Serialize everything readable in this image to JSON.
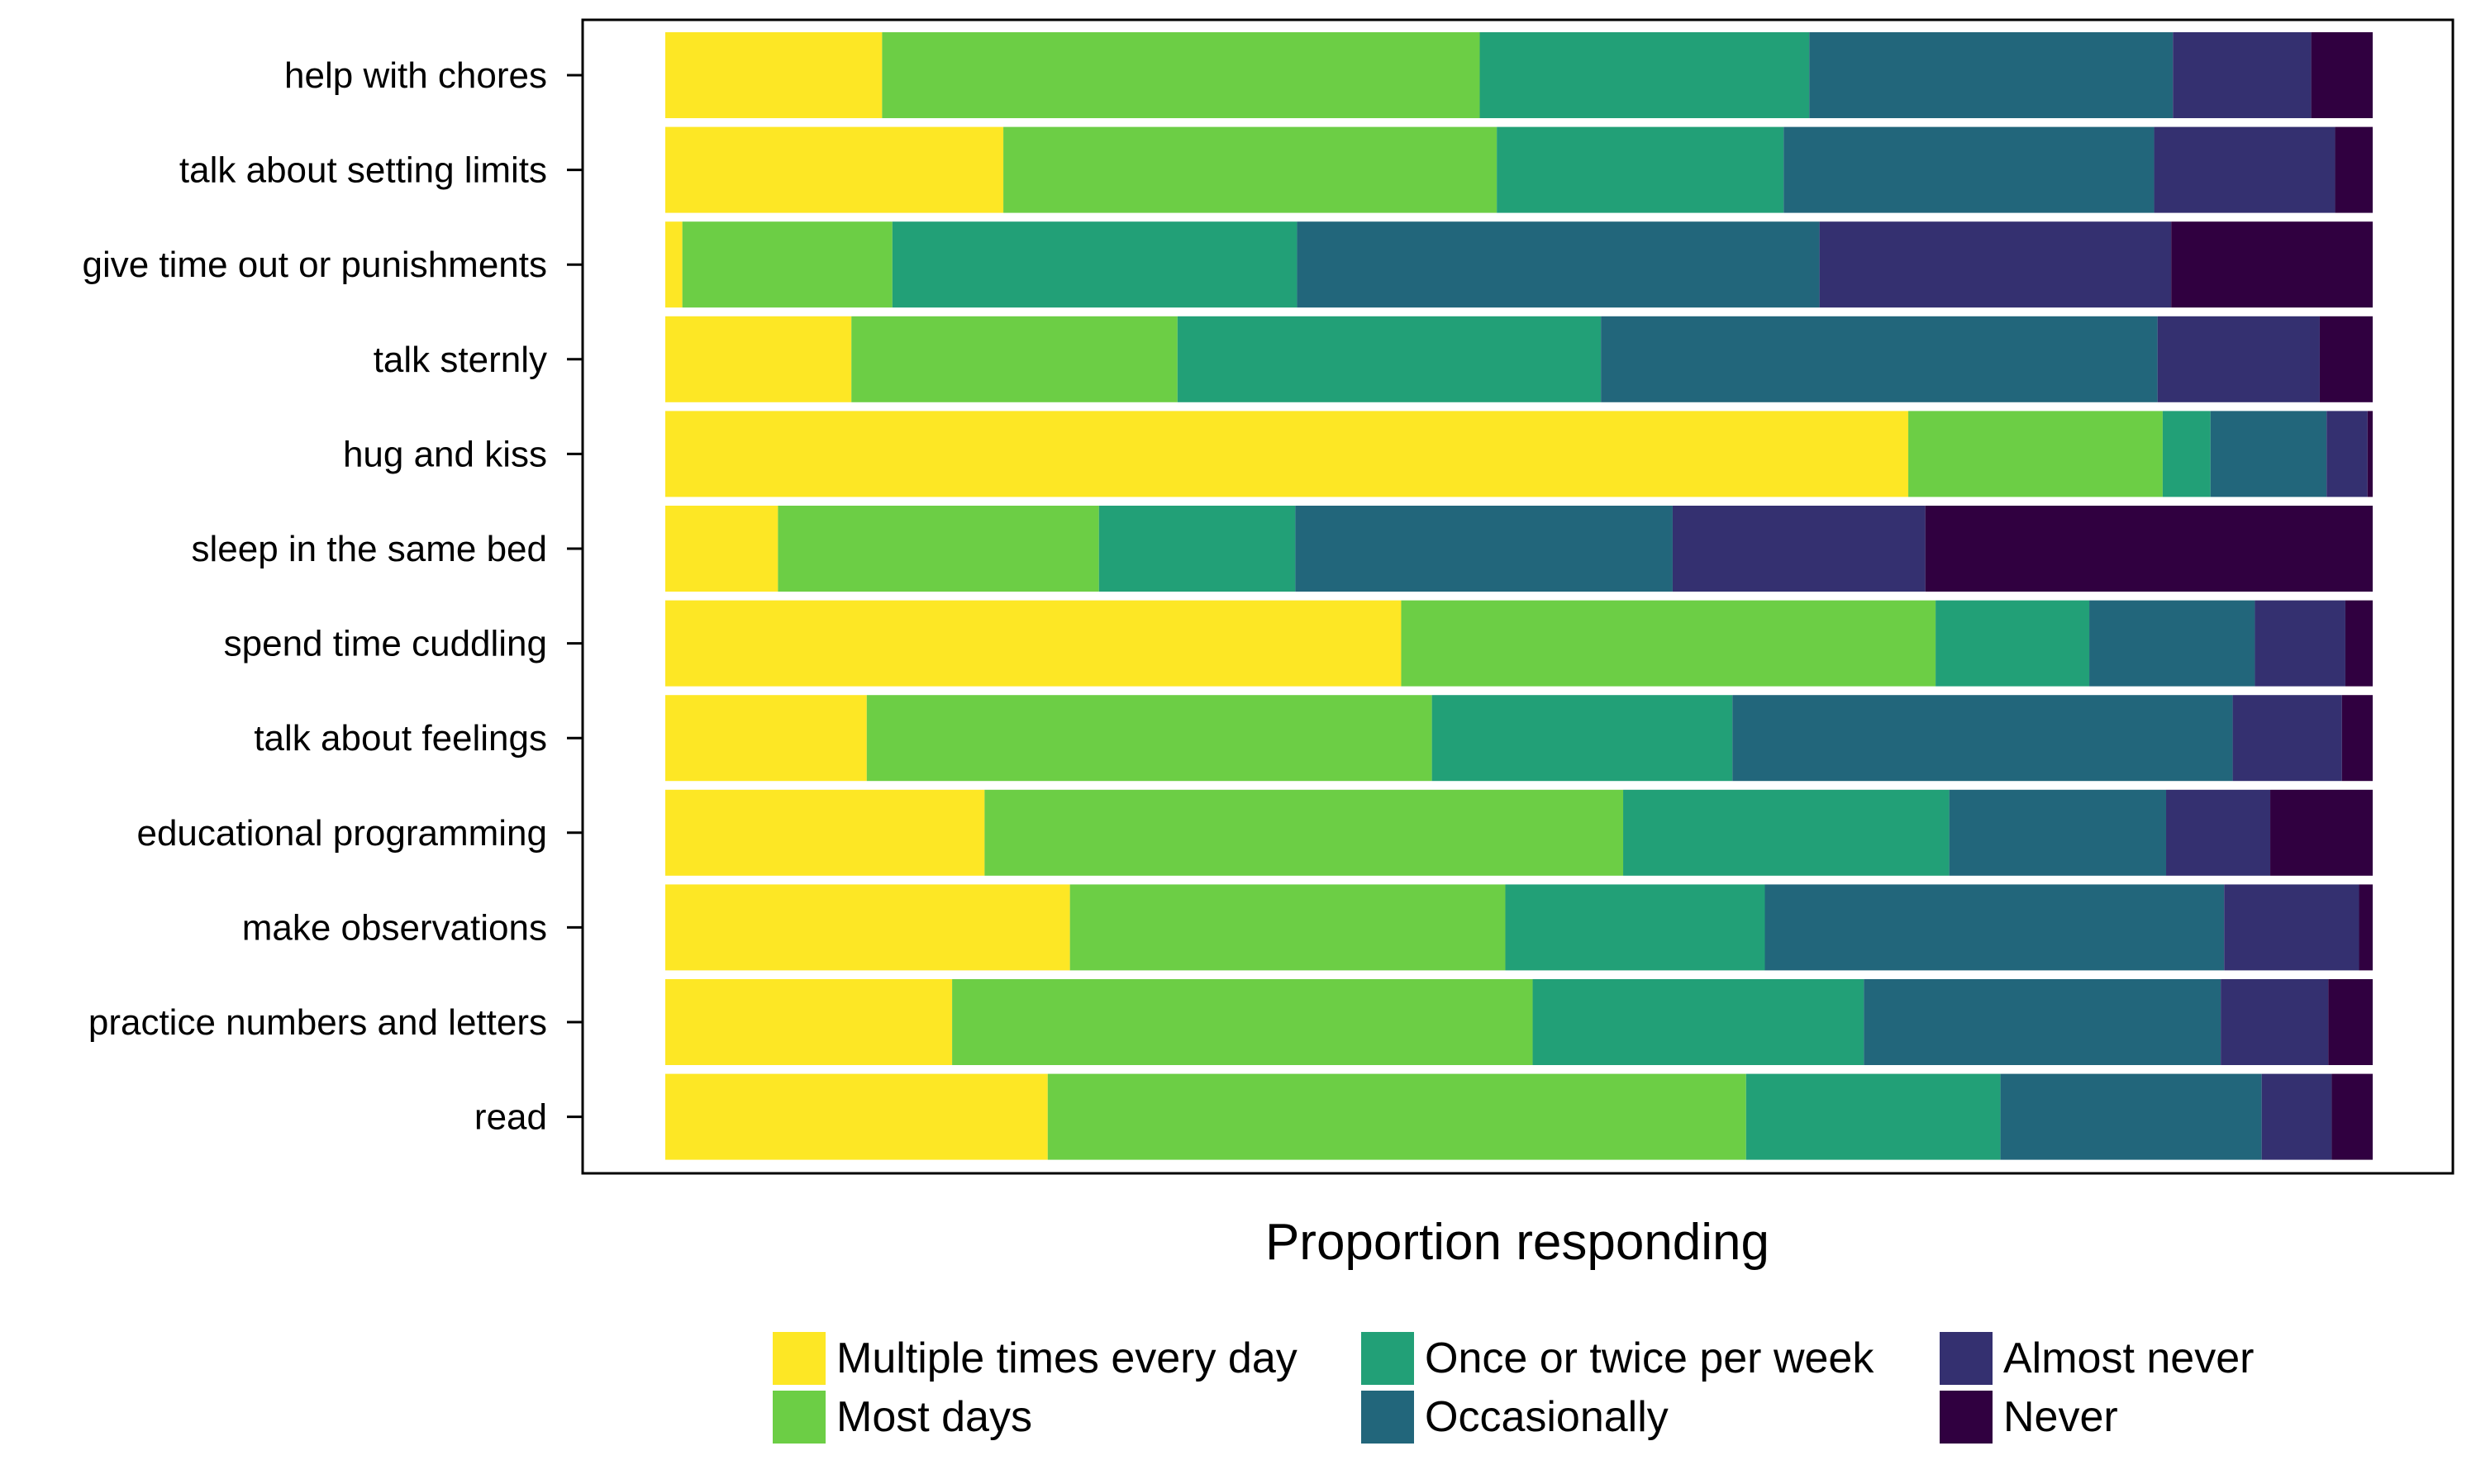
{
  "chart_data": {
    "type": "bar",
    "orientation": "horizontal",
    "stacked": true,
    "xlabel": "Proportion responding",
    "ylabel": "",
    "xlim": [
      0,
      1
    ],
    "grid": false,
    "legend_position": "bottom",
    "categories": [
      "help with chores",
      "talk about setting limits",
      "give time out or punishments",
      "talk sternly",
      "hug and kiss",
      "sleep in the same bed",
      "spend time cuddling",
      "talk about feelings",
      "educational programming",
      "make observations",
      "practice numbers and letters",
      "read"
    ],
    "series": [
      {
        "name": "Multiple times every day",
        "color": "#FDE725",
        "values": [
          0.127,
          0.198,
          0.01,
          0.109,
          0.728,
          0.066,
          0.431,
          0.118,
          0.187,
          0.237,
          0.168,
          0.224
        ]
      },
      {
        "name": "Most days",
        "color": "#6CCE45",
        "values": [
          0.35,
          0.289,
          0.123,
          0.191,
          0.149,
          0.188,
          0.313,
          0.331,
          0.374,
          0.255,
          0.34,
          0.409
        ]
      },
      {
        "name": "Once or twice per week",
        "color": "#22A077",
        "values": [
          0.193,
          0.168,
          0.237,
          0.248,
          0.028,
          0.115,
          0.09,
          0.176,
          0.191,
          0.152,
          0.194,
          0.149
        ]
      },
      {
        "name": "Occasionally",
        "color": "#22667B",
        "values": [
          0.213,
          0.217,
          0.306,
          0.326,
          0.068,
          0.221,
          0.097,
          0.293,
          0.127,
          0.269,
          0.209,
          0.153
        ]
      },
      {
        "name": "Almost never",
        "color": "#343070",
        "values": [
          0.081,
          0.106,
          0.206,
          0.095,
          0.024,
          0.148,
          0.053,
          0.064,
          0.061,
          0.079,
          0.063,
          0.041
        ]
      },
      {
        "name": "Never",
        "color": "#300040",
        "values": [
          0.036,
          0.022,
          0.118,
          0.031,
          0.003,
          0.262,
          0.016,
          0.018,
          0.06,
          0.008,
          0.026,
          0.024
        ]
      }
    ]
  }
}
